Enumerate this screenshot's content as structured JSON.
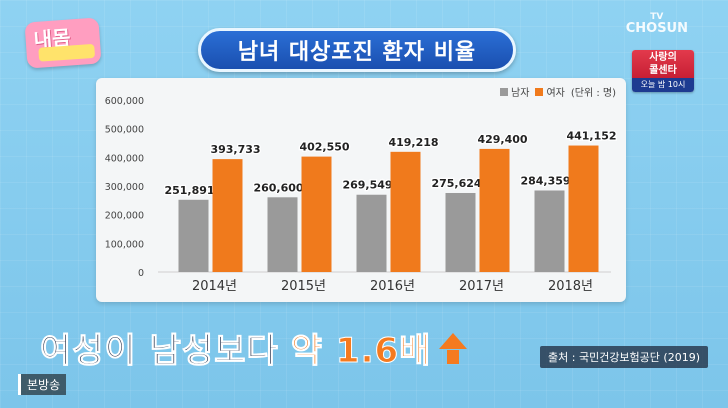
{
  "logo": {
    "text": "내몸"
  },
  "title": "남녀 대상포진 환자 비율",
  "channel": {
    "tv": "TV",
    "name": "CHOSUN"
  },
  "promo": {
    "line1": "사랑의",
    "line2": "콜센타",
    "schedule": "오늘 밤 10시"
  },
  "legend": {
    "male": "남자",
    "female": "여자",
    "unit": "(단위 : 명)"
  },
  "headline": {
    "main": "여성이 남성보다",
    "accent": "약 1.6배"
  },
  "source": "출처 : 국민건강보험공단 (2019)",
  "broadcast_tag": "본방송",
  "colors": {
    "male": "#9a9a9a",
    "female": "#f07a1c",
    "accent": "#f57a1f",
    "title_bg": "#2260c4"
  },
  "chart_data": {
    "type": "bar",
    "categories": [
      "2014년",
      "2015년",
      "2016년",
      "2017년",
      "2018년"
    ],
    "series": [
      {
        "name": "남자",
        "values": [
          251891,
          260600,
          269549,
          275624,
          284359
        ],
        "labels": [
          "251,891",
          "260,600",
          "269,549",
          "275,624",
          "284,359"
        ]
      },
      {
        "name": "여자",
        "values": [
          393733,
          402550,
          419218,
          429400,
          441152
        ],
        "labels": [
          "393,733",
          "402,550",
          "419,218",
          "429,400",
          "441,152"
        ]
      }
    ],
    "yticks": [
      "0",
      "100,000",
      "200,000",
      "300,000",
      "400,000",
      "500,000",
      "600,000"
    ],
    "ylim": [
      0,
      600000
    ],
    "grid": false,
    "legend_position": "top-right"
  }
}
